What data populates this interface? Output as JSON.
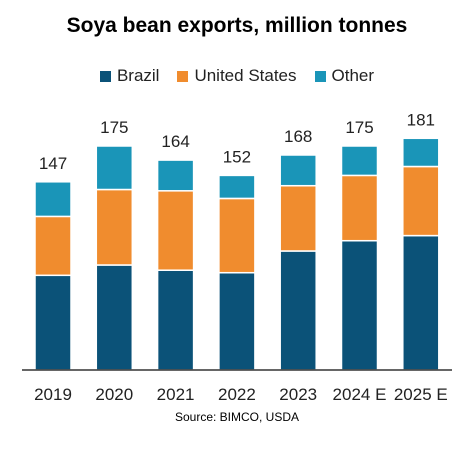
{
  "chart_data": {
    "type": "bar",
    "stacked": true,
    "title": "Soya bean exports, million tonnes",
    "categories": [
      "2019",
      "2020",
      "2021",
      "2022",
      "2023",
      "2024 E",
      "2025 E"
    ],
    "series": [
      {
        "name": "Brazil",
        "color": "#0b5278",
        "values": [
          74,
          82,
          78,
          76,
          93,
          101,
          105
        ]
      },
      {
        "name": "United States",
        "color": "#f08c2e",
        "values": [
          46,
          59,
          62,
          58,
          51,
          51,
          54
        ]
      },
      {
        "name": "Other",
        "color": "#1a95b8",
        "values": [
          27,
          34,
          24,
          18,
          24,
          23,
          22
        ]
      }
    ],
    "totals": [
      147,
      175,
      164,
      152,
      168,
      175,
      181
    ],
    "ylim": [
      0,
      190
    ],
    "xlabel": "",
    "ylabel": "",
    "grid": false,
    "legend_position": "top"
  },
  "source": "Source: BIMCO, USDA"
}
